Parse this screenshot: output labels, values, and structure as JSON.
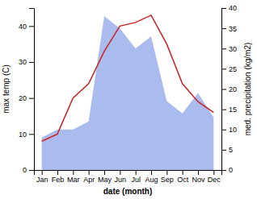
{
  "chart_data": {
    "type": "line",
    "categories": [
      "Jan",
      "Feb",
      "Mar",
      "Apr",
      "May",
      "Jun",
      "Jul",
      "Aug",
      "Sep",
      "Oct",
      "Nov",
      "Dec"
    ],
    "xlabel": "date (month)",
    "ylabel": "max temp (C)",
    "y2label": "med. precipitation (kg/m2)",
    "ylim": [
      0,
      45
    ],
    "yticks": [
      0,
      10,
      20,
      30,
      40
    ],
    "y2lim": [
      0,
      40
    ],
    "y2ticks": [
      0,
      5,
      10,
      15,
      20,
      25,
      30,
      35,
      40
    ],
    "series": [
      {
        "type": "area",
        "axis": "y2",
        "color": "#aabbee",
        "values": [
          8,
          10,
          10,
          12,
          38,
          35,
          30,
          33,
          17,
          14,
          19,
          13
        ]
      },
      {
        "type": "line",
        "color": "#cc2222",
        "values": [
          8,
          10,
          20,
          24,
          33,
          40,
          41,
          43,
          35,
          24,
          19,
          16
        ]
      }
    ]
  }
}
